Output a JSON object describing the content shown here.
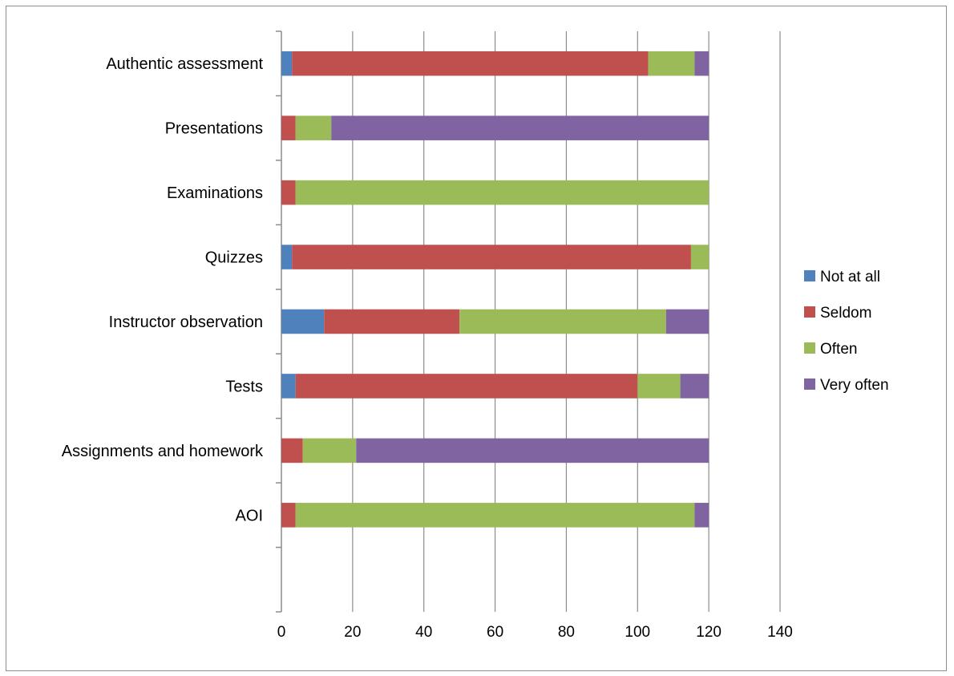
{
  "chart_data": {
    "type": "bar",
    "orientation": "horizontal",
    "stacked": true,
    "title": "",
    "xlabel": "",
    "ylabel": "",
    "xlim": [
      0,
      140
    ],
    "x_ticks": [
      0,
      20,
      40,
      60,
      80,
      100,
      120,
      140
    ],
    "x_tick_labels": [
      "0",
      "20",
      "40",
      "60",
      "80",
      "100",
      "120",
      "140"
    ],
    "grid": "vertical major gridlines",
    "legend_position": "right",
    "categories": [
      "AOI",
      "Assignments and homework",
      "Tests",
      "Instructor observation",
      "Quizzes",
      "Examinations",
      "Presentations",
      "Authentic assessment"
    ],
    "series": [
      {
        "name": "Not at all",
        "color": "#4f81bd",
        "values": [
          0,
          0,
          4,
          12,
          3,
          0,
          0,
          3
        ]
      },
      {
        "name": "Seldom",
        "color": "#c0504d",
        "values": [
          4,
          6,
          96,
          38,
          112,
          4,
          4,
          100
        ]
      },
      {
        "name": "Often",
        "color": "#9bbb59",
        "values": [
          112,
          15,
          12,
          58,
          5,
          116,
          10,
          13
        ]
      },
      {
        "name": "Very often",
        "color": "#8064a2",
        "values": [
          4,
          99,
          8,
          12,
          0,
          0,
          106,
          4
        ]
      }
    ]
  }
}
